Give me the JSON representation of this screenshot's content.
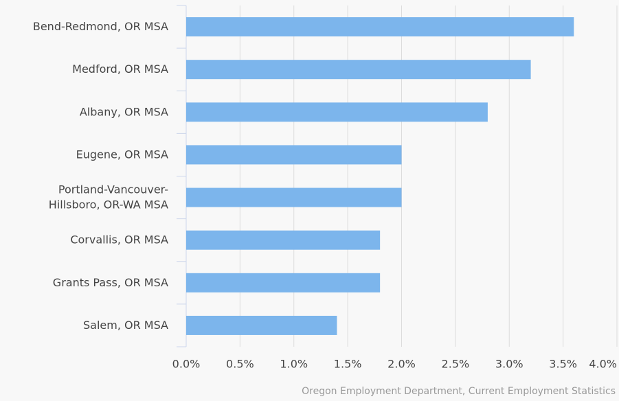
{
  "chart_data": {
    "type": "bar",
    "orientation": "horizontal",
    "categories": [
      "Bend-Redmond, OR MSA",
      "Medford, OR MSA",
      "Albany, OR MSA",
      "Eugene, OR MSA",
      "Portland-Vancouver-Hillsboro, OR-WA MSA",
      "Corvallis, OR MSA",
      "Grants Pass, OR MSA",
      "Salem, OR MSA"
    ],
    "values": [
      3.6,
      3.2,
      2.8,
      2.0,
      2.0,
      1.8,
      1.8,
      1.4
    ],
    "color": "#7cb5ec",
    "xlim": [
      0,
      4.0
    ],
    "xticks": [
      {
        "value": 0,
        "label": "0.0%"
      },
      {
        "value": 0.5,
        "label": "0.5%"
      },
      {
        "value": 1.0,
        "label": "1.0%"
      },
      {
        "value": 1.5,
        "label": "1.5%"
      },
      {
        "value": 2.0,
        "label": "2.0%"
      },
      {
        "value": 2.5,
        "label": "2.5%"
      },
      {
        "value": 3.0,
        "label": "3.0%"
      },
      {
        "value": 3.5,
        "label": "3.5%"
      },
      {
        "value": 4.0,
        "label": "4.0%"
      }
    ],
    "grid": true,
    "credits": "Oregon Employment Department, Current Employment Statistics"
  }
}
